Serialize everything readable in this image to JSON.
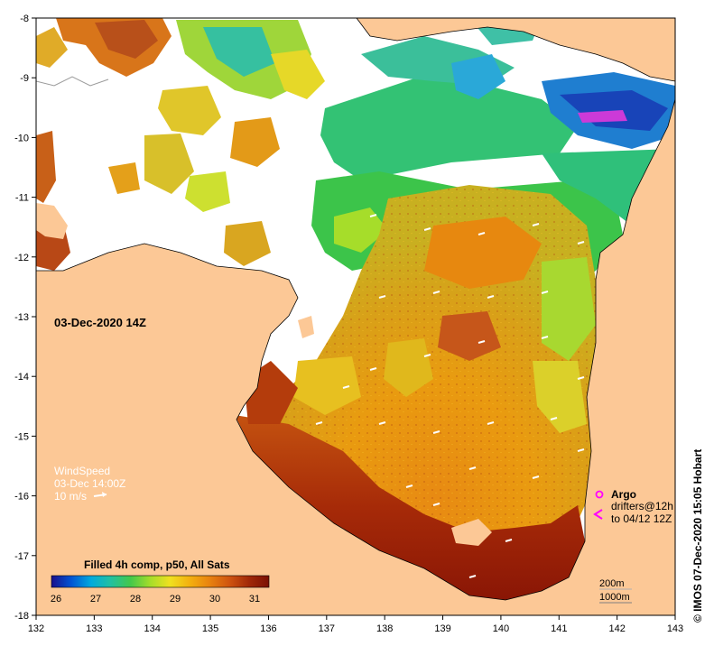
{
  "map": {
    "lon_ticks": [
      "132",
      "133",
      "134",
      "135",
      "136",
      "137",
      "138",
      "139",
      "140",
      "141",
      "142",
      "143"
    ],
    "lat_ticks": [
      "-8",
      "-9",
      "-10",
      "-11",
      "-12",
      "-13",
      "-14",
      "-15",
      "-16",
      "-17",
      "-18"
    ],
    "lon_range": [
      132,
      143
    ],
    "lat_range": [
      -18,
      -8
    ],
    "land_color": "#fcc896",
    "no_data_color": "#ffffff"
  },
  "timestamp": "03-Dec-2020 14Z",
  "wind": {
    "title": "WindSpeed",
    "time": "03-Dec 14:00Z",
    "scale_label": "10 m/s"
  },
  "colorbar": {
    "title": "Filled 4h comp, p50, All Sats",
    "ticks": [
      "26",
      "27",
      "28",
      "29",
      "30",
      "31"
    ],
    "colors": [
      "#1a0f8c",
      "#0055d4",
      "#00aadd",
      "#22c0a0",
      "#44c84a",
      "#a6dd2a",
      "#f0e020",
      "#f3b010",
      "#e88210",
      "#cf5410",
      "#a02808",
      "#7a1004"
    ]
  },
  "argo": {
    "label": "Argo",
    "drifters_line1": "drifters@12h",
    "drifters_line2": "to 04/12 12Z",
    "marker_color": "#ff00ff"
  },
  "depth_contours": {
    "line1": "200m",
    "line2": "1000m"
  },
  "copyright": "© IMOS 07-Dec-2020 15:05 Hobart"
}
